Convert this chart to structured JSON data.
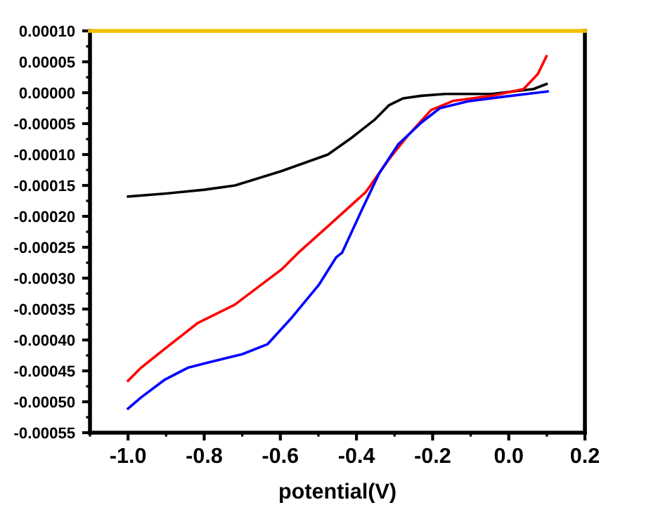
{
  "chart_data": {
    "type": "line",
    "xlabel": "potential(V)",
    "xlim": [
      -1.1,
      0.2
    ],
    "xticks": [
      {
        "value": -1.0,
        "label": "-1.0"
      },
      {
        "value": -0.8,
        "label": "-0.8"
      },
      {
        "value": -0.6,
        "label": "-0.6"
      },
      {
        "value": -0.4,
        "label": "-0.4"
      },
      {
        "value": -0.2,
        "label": "-0.2"
      },
      {
        "value": 0.0,
        "label": "0.0"
      },
      {
        "value": 0.2,
        "label": "0.2"
      }
    ],
    "ylim": [
      -0.00055,
      0.0001
    ],
    "yticks": [
      {
        "value": 0.0001,
        "label": "0.00010"
      },
      {
        "value": 5e-05,
        "label": "0.00005"
      },
      {
        "value": 0,
        "label": "0.00000"
      },
      {
        "value": -5e-05,
        "label": "-0.00005"
      },
      {
        "value": -0.0001,
        "label": "-0.00010"
      },
      {
        "value": -0.00015,
        "label": "-0.00015"
      },
      {
        "value": -0.0002,
        "label": "-0.00020"
      },
      {
        "value": -0.00025,
        "label": "-0.00025"
      },
      {
        "value": -0.0003,
        "label": "-0.00030"
      },
      {
        "value": -0.00035,
        "label": "-0.00035"
      },
      {
        "value": -0.0004,
        "label": "-0.00040"
      },
      {
        "value": -0.00045,
        "label": "-0.00045"
      },
      {
        "value": -0.0005,
        "label": "-0.00050"
      },
      {
        "value": -0.00055,
        "label": "-0.00055"
      }
    ],
    "grid": false,
    "marker": "none",
    "line_style": "solid",
    "series": [
      {
        "color": "#000000",
        "x": [
          -1.0,
          -0.9,
          -0.8,
          -0.719,
          -0.598,
          -0.475,
          -0.413,
          -0.351,
          -0.314,
          -0.277,
          -0.23,
          -0.167,
          -0.045,
          0.065,
          0.099
        ],
        "values": [
          -0.000168,
          -0.000163,
          -0.000157,
          -0.00015,
          -0.000127,
          -0.0001,
          -7.3e-05,
          -4.3e-05,
          -2e-05,
          -9e-06,
          -5e-06,
          -2e-06,
          -2e-06,
          6e-06,
          1.4e-05
        ]
      },
      {
        "color": "#ff0000",
        "x": [
          -1.0,
          -0.966,
          -0.903,
          -0.818,
          -0.72,
          -0.597,
          -0.553,
          -0.475,
          -0.376,
          -0.314,
          -0.266,
          -0.204,
          -0.145,
          -0.045,
          0.039,
          0.076,
          0.099
        ],
        "values": [
          -0.000466,
          -0.000445,
          -0.000414,
          -0.000373,
          -0.000343,
          -0.000286,
          -0.000259,
          -0.000216,
          -0.000161,
          -0.000107,
          -7e-05,
          -2.8e-05,
          -1.3e-05,
          -5e-06,
          6e-06,
          3e-05,
          5.9e-05
        ]
      },
      {
        "color": "#0000ff",
        "x": [
          -1.0,
          -0.966,
          -0.903,
          -0.843,
          -0.787,
          -0.7,
          -0.634,
          -0.573,
          -0.499,
          -0.453,
          -0.438,
          -0.387,
          -0.34,
          -0.291,
          -0.229,
          -0.181,
          -0.107,
          -0.02,
          0.102
        ],
        "values": [
          -0.000511,
          -0.000493,
          -0.000464,
          -0.000445,
          -0.000436,
          -0.000423,
          -0.000407,
          -0.000366,
          -0.000311,
          -0.000266,
          -0.000259,
          -0.000191,
          -0.00013,
          -8.4e-05,
          -4.8e-05,
          -2.5e-05,
          -1.4e-05,
          -7e-06,
          2e-06
        ]
      }
    ]
  }
}
